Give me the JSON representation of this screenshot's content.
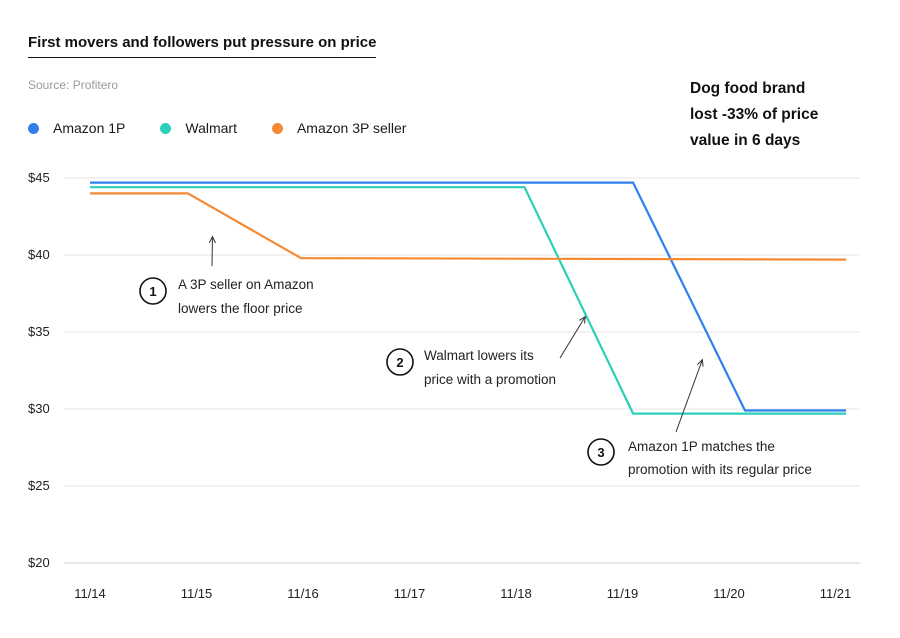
{
  "title": "First movers and followers put pressure on price",
  "source": "Source: Profitero",
  "callout_lines": [
    "Dog food brand",
    "lost -33% of price",
    "value in 6 days"
  ],
  "chart_data": {
    "type": "line",
    "x": [
      "11/14",
      "11/15",
      "11/16",
      "11/17",
      "11/18",
      "11/19",
      "11/20",
      "11/21"
    ],
    "ylim": [
      20,
      45
    ],
    "y_ticks": [
      "$45",
      "$40",
      "$35",
      "$30",
      "$25",
      "$20"
    ],
    "y_tick_values": [
      45,
      40,
      35,
      30,
      25,
      20
    ],
    "series": [
      {
        "name": "Amazon 1P",
        "color": "#2f80ed",
        "points": [
          [
            0,
            44.7
          ],
          [
            5.1,
            44.7
          ],
          [
            6.15,
            29.9
          ],
          [
            7.1,
            29.9
          ]
        ]
      },
      {
        "name": "Walmart",
        "color": "#2ccfb9",
        "points": [
          [
            0,
            44.4
          ],
          [
            4.08,
            44.4
          ],
          [
            5.1,
            29.7
          ],
          [
            7.1,
            29.7
          ]
        ]
      },
      {
        "name": "Amazon 3P seller",
        "color": "#f58a33",
        "points": [
          [
            0,
            44.0
          ],
          [
            0.92,
            44.0
          ],
          [
            1.98,
            39.8
          ],
          [
            7.1,
            39.7
          ]
        ]
      }
    ],
    "annotations": [
      {
        "num": "1",
        "lines": [
          "A 3P seller on Amazon",
          "lowers the floor price"
        ],
        "arrow_to": [
          1.15,
          41.2
        ]
      },
      {
        "num": "2",
        "lines": [
          "Walmart lowers its",
          "price with a promotion"
        ],
        "arrow_to": [
          4.65,
          36.0
        ]
      },
      {
        "num": "3",
        "lines": [
          "Amazon 1P matches the",
          "promotion with its regular price"
        ],
        "arrow_to": [
          5.75,
          33.2
        ]
      }
    ]
  }
}
